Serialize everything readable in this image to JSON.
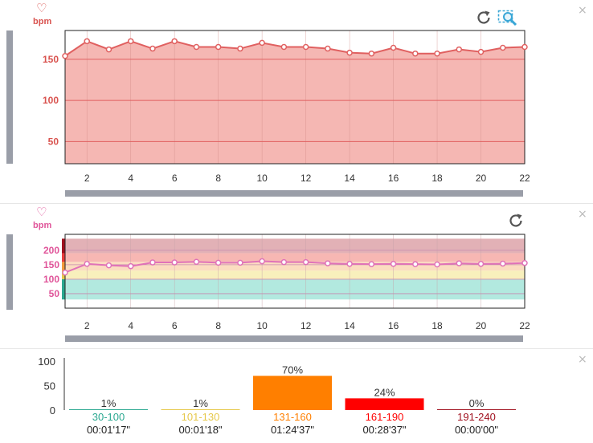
{
  "colors": {
    "hr_line": "#e06060",
    "hr_fill": "#f5b7b3",
    "zone_line": "#e072b8",
    "unit_red": "#d9534f",
    "unit_pink": "#e0559a"
  },
  "panel1": {
    "heart_icon": "♡",
    "unit": "bpm",
    "reset_icon": "⟳",
    "zoom_icon": "zoom-search",
    "close_icon": "×"
  },
  "panel2": {
    "heart_icon": "♡",
    "unit": "bpm",
    "reset_icon": "⟳",
    "close_icon": "×"
  },
  "panel3": {
    "close_icon": "×"
  },
  "chart_data": [
    {
      "type": "area",
      "x": [
        1,
        2,
        3,
        4,
        5,
        6,
        7,
        8,
        9,
        10,
        11,
        12,
        13,
        14,
        15,
        16,
        17,
        18,
        19,
        20,
        21,
        22
      ],
      "values": [
        154,
        172,
        162,
        172,
        163,
        172,
        165,
        165,
        163,
        170,
        165,
        165,
        163,
        158,
        157,
        164,
        157,
        157,
        162,
        159,
        164,
        165
      ],
      "xlim": [
        1,
        22
      ],
      "ylim": [
        23,
        185
      ],
      "x_ticks": [
        "2",
        "4",
        "6",
        "8",
        "10",
        "12",
        "14",
        "16",
        "18",
        "20",
        "22"
      ],
      "x_tick_values": [
        2,
        4,
        6,
        8,
        10,
        12,
        14,
        16,
        18,
        20,
        22
      ],
      "y_ticks": [
        "50",
        "100",
        "150"
      ],
      "y_tick_values": [
        50,
        100,
        150
      ],
      "grid": true
    },
    {
      "type": "line",
      "x": [
        1,
        2,
        3,
        4,
        5,
        6,
        7,
        8,
        9,
        10,
        11,
        12,
        13,
        14,
        15,
        16,
        17,
        18,
        19,
        20,
        21,
        22
      ],
      "values": [
        123,
        153,
        148,
        145,
        158,
        158,
        160,
        157,
        157,
        162,
        159,
        159,
        155,
        153,
        152,
        153,
        152,
        151,
        155,
        153,
        154,
        156
      ],
      "xlim": [
        1,
        22
      ],
      "ylim": [
        0,
        255
      ],
      "x_ticks": [
        "2",
        "4",
        "6",
        "8",
        "10",
        "12",
        "14",
        "16",
        "18",
        "20",
        "22"
      ],
      "x_tick_values": [
        2,
        4,
        6,
        8,
        10,
        12,
        14,
        16,
        18,
        20,
        22
      ],
      "y_ticks": [
        "50",
        "100",
        "150",
        "200"
      ],
      "y_tick_values": [
        50,
        100,
        150,
        200
      ],
      "zones": [
        {
          "from": 30,
          "to": 100,
          "color": "#b2e9df",
          "side": "#2aa890"
        },
        {
          "from": 100,
          "to": 130,
          "color": "#f8f0bc",
          "side": "#e6c84a"
        },
        {
          "from": 130,
          "to": 160,
          "color": "#fbdcc0",
          "side": "#f29a3c"
        },
        {
          "from": 160,
          "to": 190,
          "color": "#f7b7b3",
          "side": "#e83c3c"
        },
        {
          "from": 190,
          "to": 240,
          "color": "#e2b1b6",
          "side": "#a0101e"
        }
      ]
    },
    {
      "type": "bar",
      "categories": [
        "30-100",
        "101-130",
        "131-160",
        "161-190",
        "191-240"
      ],
      "values": [
        1,
        1,
        70,
        24,
        0
      ],
      "value_labels": [
        "1%",
        "1%",
        "70%",
        "24%",
        "0%"
      ],
      "durations": [
        "00:01'17\"",
        "00:01'18\"",
        "01:24'37\"",
        "00:28'37\"",
        "00:00'00\""
      ],
      "colors": [
        "#2aa890",
        "#e6c84a",
        "#ff7f00",
        "#ff0000",
        "#a0101e"
      ],
      "ylim": [
        0,
        100
      ],
      "y_ticks": [
        "0",
        "50",
        "100"
      ],
      "y_tick_values": [
        0,
        50,
        100
      ]
    }
  ]
}
